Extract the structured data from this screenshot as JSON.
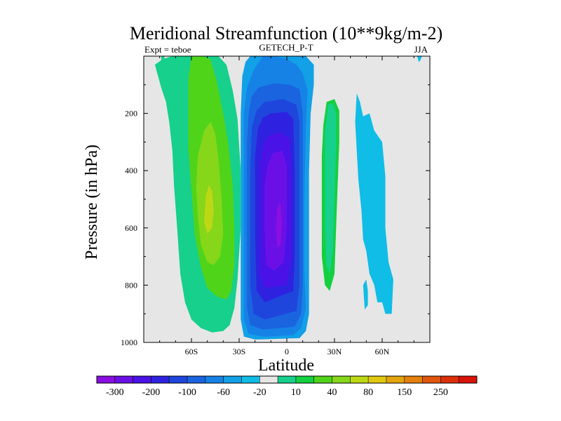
{
  "chart_data": {
    "type": "contour",
    "title": "Meridional Streamfunction (10**9kg/m-2)",
    "left_label": "Expt = teboe",
    "center_label": "GETECH_P-T",
    "right_label": "JJA",
    "xlabel": "Latitude",
    "ylabel": "Pressure (in hPa)",
    "x_ticks": [
      {
        "value": -60,
        "label": "60S"
      },
      {
        "value": -30,
        "label": "30S"
      },
      {
        "value": 0,
        "label": "0"
      },
      {
        "value": 30,
        "label": "30N"
      },
      {
        "value": 60,
        "label": "60N"
      }
    ],
    "y_ticks": [
      {
        "value": 200,
        "label": "200"
      },
      {
        "value": 400,
        "label": "400"
      },
      {
        "value": 600,
        "label": "600"
      },
      {
        "value": 800,
        "label": "800"
      },
      {
        "value": 1000,
        "label": "1000"
      }
    ],
    "xlim": [
      -90,
      90
    ],
    "ylim": [
      1000,
      0
    ],
    "background_color": "#e6e6e6",
    "colorbar": {
      "colors": [
        "#8a0fe0",
        "#6a10e6",
        "#4a12e6",
        "#2e22e0",
        "#1e46dc",
        "#1a64e0",
        "#1682e6",
        "#12a0e6",
        "#10bde6",
        "#e6e6e6",
        "#16d08c",
        "#14d040",
        "#50d41a",
        "#86d61a",
        "#bcd814",
        "#e0c810",
        "#e4a40e",
        "#e4800e",
        "#e0560c",
        "#dc300a",
        "#d8140a"
      ],
      "labels": [
        "-300",
        "-200",
        "-100",
        "-60",
        "-20",
        "10",
        "40",
        "80",
        "150",
        "250"
      ],
      "label_positions": [
        1,
        3,
        5,
        7,
        9,
        11,
        13,
        15,
        17,
        19
      ]
    },
    "contour_regions": [
      {
        "name": "nh-cell-outer",
        "level": 20,
        "color": "#16d08c",
        "points": [
          [
            -83,
            30
          ],
          [
            -78,
            10
          ],
          [
            -72,
            0
          ],
          [
            -60,
            0
          ],
          [
            -50,
            0
          ],
          [
            -43,
            0
          ],
          [
            -38,
            30
          ],
          [
            -34,
            120
          ],
          [
            -31,
            220
          ],
          [
            -29,
            400
          ],
          [
            -29,
            600
          ],
          [
            -31,
            780
          ],
          [
            -33,
            880
          ],
          [
            -36,
            940
          ],
          [
            -40,
            960
          ],
          [
            -47,
            965
          ],
          [
            -54,
            950
          ],
          [
            -60,
            920
          ],
          [
            -64,
            860
          ],
          [
            -67,
            760
          ],
          [
            -69,
            600
          ],
          [
            -71,
            450
          ],
          [
            -72,
            330
          ],
          [
            -74,
            230
          ],
          [
            -76,
            160
          ],
          [
            -79,
            110
          ],
          [
            -81,
            70
          ]
        ]
      },
      {
        "name": "nh-cell-mid",
        "level": 40,
        "color": "#50d41a",
        "points": [
          [
            -60,
            0
          ],
          [
            -53,
            0
          ],
          [
            -48,
            10
          ],
          [
            -44,
            90
          ],
          [
            -40,
            200
          ],
          [
            -37,
            300
          ],
          [
            -34,
            450
          ],
          [
            -33,
            600
          ],
          [
            -33,
            730
          ],
          [
            -35,
            820
          ],
          [
            -38,
            850
          ],
          [
            -44,
            840
          ],
          [
            -50,
            810
          ],
          [
            -54,
            740
          ],
          [
            -58,
            620
          ],
          [
            -60,
            470
          ],
          [
            -62,
            320
          ],
          [
            -62,
            180
          ],
          [
            -62,
            80
          ]
        ]
      },
      {
        "name": "nh-cell-core",
        "level": 80,
        "color": "#86d61a",
        "points": [
          [
            -56,
            350
          ],
          [
            -52,
            260
          ],
          [
            -48,
            230
          ],
          [
            -45,
            270
          ],
          [
            -43,
            360
          ],
          [
            -41,
            500
          ],
          [
            -40,
            620
          ],
          [
            -42,
            700
          ],
          [
            -46,
            730
          ],
          [
            -50,
            720
          ],
          [
            -54,
            660
          ],
          [
            -56,
            560
          ],
          [
            -57,
            450
          ]
        ]
      },
      {
        "name": "nh-cell-peak",
        "level": 150,
        "color": "#bcd814",
        "points": [
          [
            -51,
            490
          ],
          [
            -49,
            450
          ],
          [
            -47,
            470
          ],
          [
            -46,
            540
          ],
          [
            -47,
            600
          ],
          [
            -50,
            620
          ],
          [
            -52,
            580
          ]
        ]
      },
      {
        "name": "sh-cell-l1",
        "level": -10,
        "color": "#12a0e6",
        "points": [
          [
            -23,
            0
          ],
          [
            12,
            0
          ],
          [
            17,
            30
          ],
          [
            17,
            100
          ],
          [
            15,
            200
          ],
          [
            14,
            400
          ],
          [
            14,
            700
          ],
          [
            14,
            900
          ],
          [
            12,
            960
          ],
          [
            8,
            985
          ],
          [
            -20,
            990
          ],
          [
            -27,
            980
          ],
          [
            -29,
            920
          ],
          [
            -29,
            700
          ],
          [
            -29,
            400
          ],
          [
            -29,
            200
          ],
          [
            -28,
            70
          ],
          [
            -26,
            20
          ]
        ]
      },
      {
        "name": "sh-cell-l2",
        "level": -20,
        "color": "#1682e6",
        "points": [
          [
            -15,
            0
          ],
          [
            -8,
            0
          ],
          [
            0,
            10
          ],
          [
            6,
            30
          ],
          [
            10,
            60
          ],
          [
            13,
            120
          ],
          [
            12,
            250
          ],
          [
            11,
            500
          ],
          [
            11,
            750
          ],
          [
            12,
            880
          ],
          [
            9,
            950
          ],
          [
            4,
            975
          ],
          [
            -15,
            980
          ],
          [
            -24,
            970
          ],
          [
            -27,
            920
          ],
          [
            -27,
            700
          ],
          [
            -27,
            400
          ],
          [
            -27,
            200
          ],
          [
            -25,
            110
          ],
          [
            -21,
            50
          ]
        ]
      },
      {
        "name": "sh-cell-l3",
        "level": -40,
        "color": "#1a64e0",
        "points": [
          [
            -18,
            110
          ],
          [
            -8,
            95
          ],
          [
            2,
            100
          ],
          [
            8,
            115
          ],
          [
            10,
            200
          ],
          [
            10,
            500
          ],
          [
            10,
            800
          ],
          [
            9,
            900
          ],
          [
            5,
            945
          ],
          [
            -15,
            955
          ],
          [
            -23,
            940
          ],
          [
            -25,
            880
          ],
          [
            -25,
            600
          ],
          [
            -25,
            300
          ],
          [
            -24,
            200
          ],
          [
            -22,
            140
          ]
        ]
      },
      {
        "name": "sh-cell-l4",
        "level": -60,
        "color": "#1e46dc",
        "points": [
          [
            -14,
            160
          ],
          [
            -2,
            150
          ],
          [
            6,
            170
          ],
          [
            8,
            230
          ],
          [
            8,
            500
          ],
          [
            8,
            800
          ],
          [
            6,
            890
          ],
          [
            -14,
            920
          ],
          [
            -21,
            900
          ],
          [
            -23,
            800
          ],
          [
            -23,
            400
          ],
          [
            -22,
            250
          ],
          [
            -19,
            190
          ]
        ]
      },
      {
        "name": "sh-cell-l5",
        "level": -100,
        "color": "#2e22e0",
        "points": [
          [
            -10,
            200
          ],
          [
            0,
            195
          ],
          [
            4,
            220
          ],
          [
            5,
            400
          ],
          [
            5,
            700
          ],
          [
            4,
            820
          ],
          [
            -14,
            860
          ],
          [
            -19,
            820
          ],
          [
            -20,
            600
          ],
          [
            -20,
            350
          ],
          [
            -18,
            250
          ],
          [
            -15,
            215
          ]
        ]
      },
      {
        "name": "sh-cell-l6",
        "level": -200,
        "color": "#4a12e6",
        "points": [
          [
            -12,
            280
          ],
          [
            -4,
            265
          ],
          [
            2,
            290
          ],
          [
            3,
            450
          ],
          [
            3,
            700
          ],
          [
            0,
            800
          ],
          [
            -14,
            810
          ],
          [
            -17,
            760
          ],
          [
            -17,
            500
          ],
          [
            -17,
            380
          ],
          [
            -15,
            310
          ]
        ]
      },
      {
        "name": "sh-cell-l7",
        "level": -300,
        "color": "#6a10e6",
        "points": [
          [
            -9,
            340
          ],
          [
            -3,
            330
          ],
          [
            0,
            380
          ],
          [
            0,
            600
          ],
          [
            -2,
            720
          ],
          [
            -8,
            750
          ],
          [
            -13,
            730
          ],
          [
            -14,
            600
          ],
          [
            -14,
            450
          ],
          [
            -12,
            380
          ]
        ]
      },
      {
        "name": "sh-cell-peak",
        "level": -350,
        "color": "#8a0fe0",
        "points": [
          [
            -6,
            530
          ],
          [
            -4,
            510
          ],
          [
            -3,
            580
          ],
          [
            -4,
            660
          ],
          [
            -6,
            670
          ],
          [
            -7,
            600
          ]
        ]
      },
      {
        "name": "nh-green-blob",
        "level": 10,
        "color": "#14d040",
        "points": [
          [
            25,
            160
          ],
          [
            30,
            150
          ],
          [
            33,
            190
          ],
          [
            33,
            300
          ],
          [
            32,
            450
          ],
          [
            31,
            600
          ],
          [
            30,
            760
          ],
          [
            27,
            820
          ],
          [
            24,
            800
          ],
          [
            22,
            700
          ],
          [
            22,
            500
          ],
          [
            22,
            350
          ],
          [
            23,
            240
          ]
        ]
      },
      {
        "name": "nh-green-blob-inner",
        "level": 20,
        "color": "#16d08c",
        "points": [
          [
            26,
            170
          ],
          [
            29,
            165
          ],
          [
            31,
            200
          ],
          [
            31,
            320
          ],
          [
            30,
            500
          ],
          [
            29,
            680
          ],
          [
            27,
            760
          ],
          [
            25,
            730
          ],
          [
            24,
            600
          ],
          [
            24,
            420
          ],
          [
            24,
            270
          ]
        ]
      },
      {
        "name": "nh-blue-east",
        "level": -10,
        "color": "#10bde6",
        "points": [
          [
            44,
            130
          ],
          [
            46,
            160
          ],
          [
            48,
            210
          ],
          [
            52,
            200
          ],
          [
            55,
            260
          ],
          [
            60,
            300
          ],
          [
            62,
            420
          ],
          [
            62,
            600
          ],
          [
            64,
            720
          ],
          [
            67,
            780
          ],
          [
            66,
            900
          ],
          [
            62,
            900
          ],
          [
            60,
            860
          ],
          [
            57,
            860
          ],
          [
            55,
            800
          ],
          [
            52,
            760
          ],
          [
            50,
            680
          ],
          [
            48,
            640
          ],
          [
            47,
            540
          ],
          [
            45,
            430
          ],
          [
            44,
            330
          ],
          [
            43,
            230
          ]
        ]
      },
      {
        "name": "nh-blue-east-tail",
        "level": -10,
        "color": "#10bde6",
        "points": [
          [
            48,
            800
          ],
          [
            50,
            780
          ],
          [
            51,
            820
          ],
          [
            51,
            870
          ],
          [
            49,
            885
          ]
        ]
      },
      {
        "name": "top-green-sliver",
        "level": 10,
        "color": "#16d08c",
        "points": [
          [
            -79,
            0
          ],
          [
            -77,
            0
          ],
          [
            -77,
            50
          ],
          [
            -79,
            55
          ]
        ]
      },
      {
        "name": "top-blue-sliver",
        "level": -10,
        "color": "#10bde6",
        "points": [
          [
            82,
            0
          ],
          [
            85,
            0
          ],
          [
            84,
            15
          ],
          [
            83,
            20
          ]
        ]
      }
    ]
  }
}
